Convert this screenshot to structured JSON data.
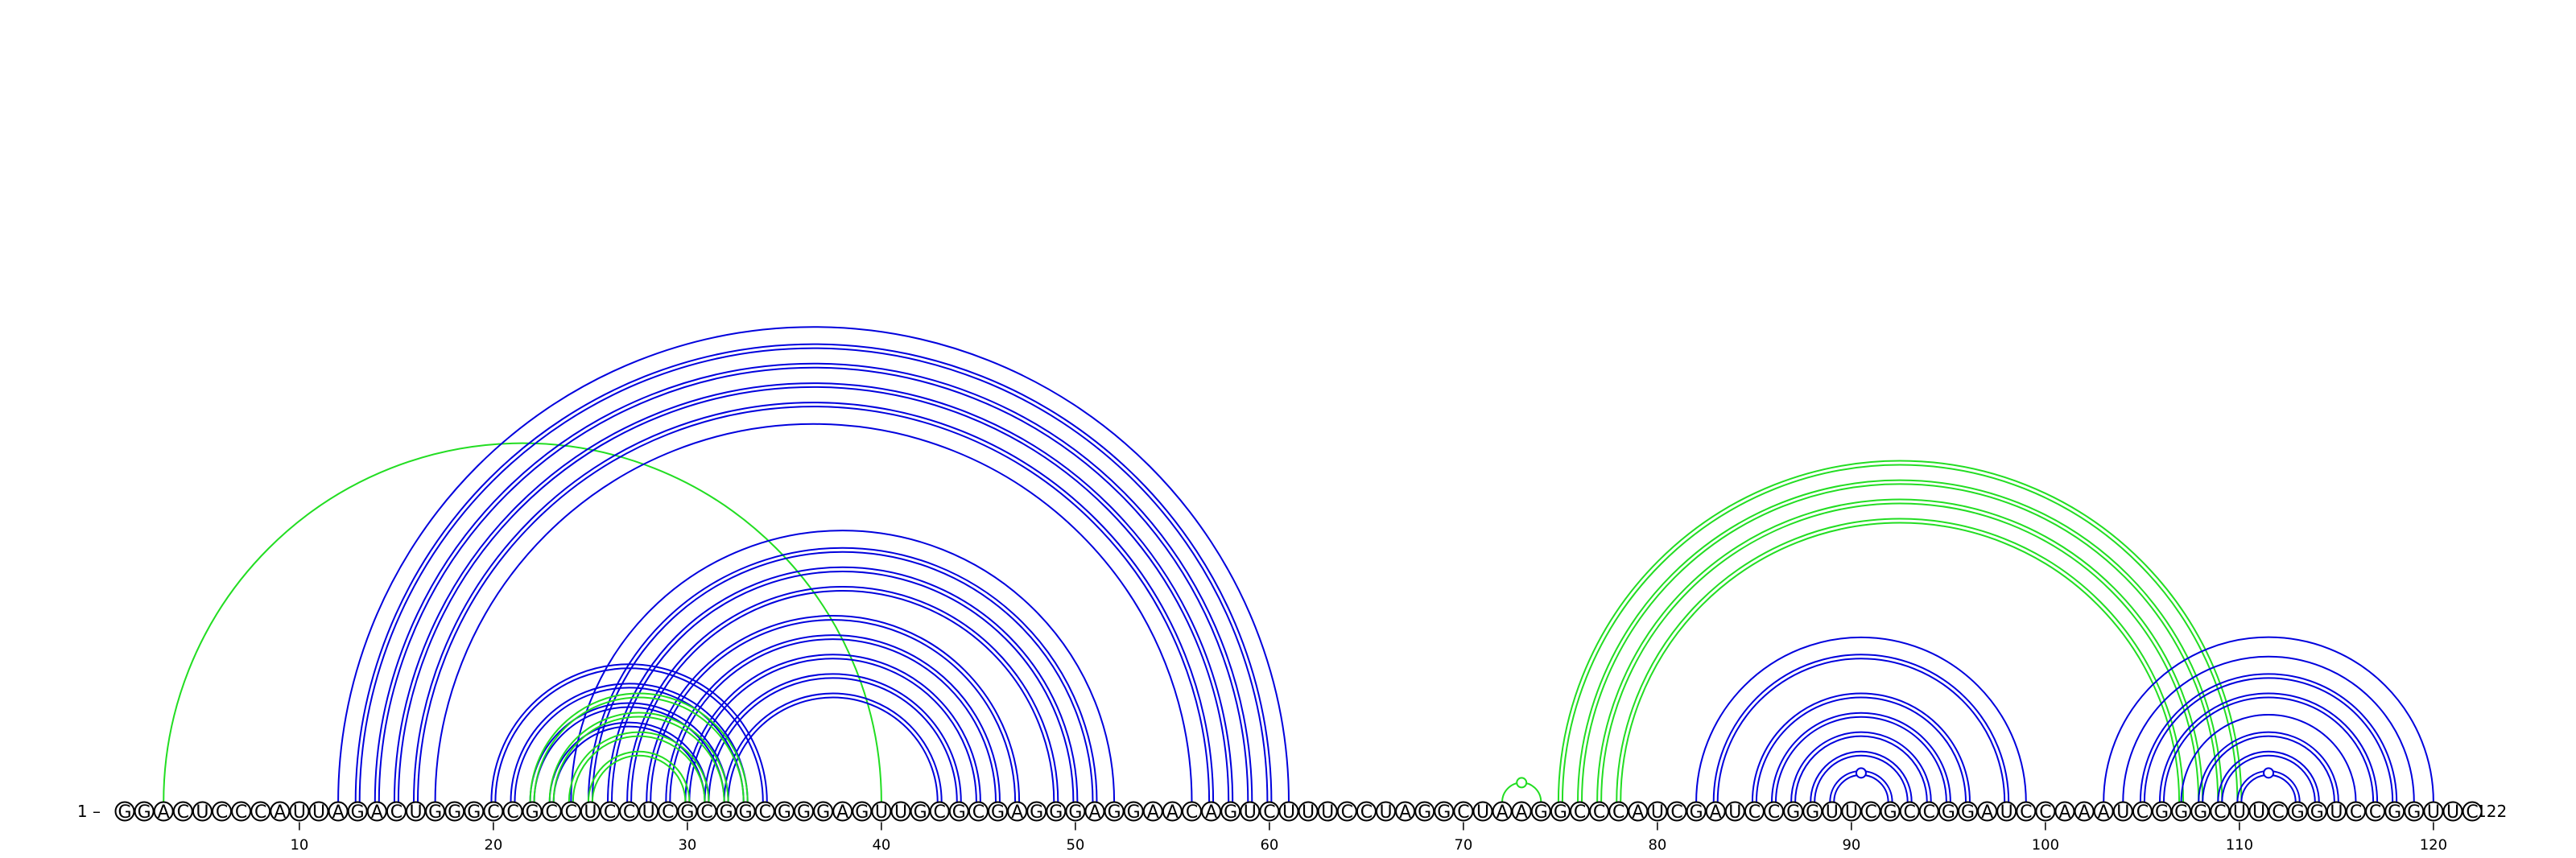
{
  "diagram": {
    "type": "rna-arc-diagram",
    "sequence": "GGACUCCCAUUAGACUGGGCCGCCUCCUCGCGGCGGGAGUUGCGCGAGGGAGGAACAGUCUUUCCUAGGCUAAGGCCCAUCGAUCCGGUUCGCCGGAUCCAAAUCGGGCUUCGGUCCGGUUC",
    "start_label": "1 –",
    "end_label": "–122",
    "ticks": [
      {
        "pos": 10,
        "label": "10"
      },
      {
        "pos": 20,
        "label": "20"
      },
      {
        "pos": 30,
        "label": "30"
      },
      {
        "pos": 40,
        "label": "40"
      },
      {
        "pos": 50,
        "label": "50"
      },
      {
        "pos": 60,
        "label": "60"
      },
      {
        "pos": 70,
        "label": "70"
      },
      {
        "pos": 80,
        "label": "80"
      },
      {
        "pos": 90,
        "label": "90"
      },
      {
        "pos": 100,
        "label": "100"
      },
      {
        "pos": 110,
        "label": "110"
      },
      {
        "pos": 120,
        "label": "120"
      }
    ],
    "colors": {
      "blue": "#0000dd",
      "green": "#22dd22"
    },
    "arcs": [
      {
        "i": 3,
        "j": 40,
        "color": "green",
        "double": false
      },
      {
        "i": 12,
        "j": 61,
        "color": "blue",
        "double": false
      },
      {
        "i": 13,
        "j": 60,
        "color": "blue",
        "double": true
      },
      {
        "i": 14,
        "j": 59,
        "color": "blue",
        "double": true
      },
      {
        "i": 15,
        "j": 58,
        "color": "blue",
        "double": true
      },
      {
        "i": 16,
        "j": 57,
        "color": "blue",
        "double": true
      },
      {
        "i": 17,
        "j": 56,
        "color": "blue",
        "double": false
      },
      {
        "i": 20,
        "j": 34,
        "color": "blue",
        "double": true
      },
      {
        "i": 21,
        "j": 33,
        "color": "blue",
        "double": true
      },
      {
        "i": 22,
        "j": 32,
        "color": "blue",
        "double": true
      },
      {
        "i": 23,
        "j": 31,
        "color": "blue",
        "double": true
      },
      {
        "i": 24,
        "j": 52,
        "color": "blue",
        "double": false
      },
      {
        "i": 25,
        "j": 51,
        "color": "blue",
        "double": true
      },
      {
        "i": 26,
        "j": 50,
        "color": "blue",
        "double": true
      },
      {
        "i": 27,
        "j": 49,
        "color": "blue",
        "double": true
      },
      {
        "i": 28,
        "j": 47,
        "color": "blue",
        "double": true
      },
      {
        "i": 29,
        "j": 46,
        "color": "blue",
        "double": true
      },
      {
        "i": 30,
        "j": 45,
        "color": "blue",
        "double": true
      },
      {
        "i": 31,
        "j": 44,
        "color": "blue",
        "double": true
      },
      {
        "i": 32,
        "j": 43,
        "color": "blue",
        "double": true
      },
      {
        "i": 22,
        "j": 33,
        "color": "green",
        "double": true
      },
      {
        "i": 23,
        "j": 32,
        "color": "green",
        "double": true
      },
      {
        "i": 24,
        "j": 31,
        "color": "green",
        "double": true
      },
      {
        "i": 25,
        "j": 30,
        "color": "green",
        "double": true
      },
      {
        "i": 72,
        "j": 74,
        "color": "green",
        "double": false,
        "loop_marker": true
      },
      {
        "i": 75,
        "j": 110,
        "color": "green",
        "double": true
      },
      {
        "i": 76,
        "j": 109,
        "color": "green",
        "double": true
      },
      {
        "i": 77,
        "j": 108,
        "color": "green",
        "double": true
      },
      {
        "i": 78,
        "j": 107,
        "color": "green",
        "double": true
      },
      {
        "i": 82,
        "j": 99,
        "color": "blue",
        "double": false
      },
      {
        "i": 83,
        "j": 98,
        "color": "blue",
        "double": true
      },
      {
        "i": 85,
        "j": 96,
        "color": "blue",
        "double": true
      },
      {
        "i": 86,
        "j": 95,
        "color": "blue",
        "double": true
      },
      {
        "i": 87,
        "j": 94,
        "color": "blue",
        "double": true
      },
      {
        "i": 88,
        "j": 93,
        "color": "blue",
        "double": true
      },
      {
        "i": 89,
        "j": 92,
        "color": "blue",
        "double": true,
        "loop_marker": true
      },
      {
        "i": 103,
        "j": 120,
        "color": "blue",
        "double": false
      },
      {
        "i": 104,
        "j": 119,
        "color": "blue",
        "double": false
      },
      {
        "i": 105,
        "j": 118,
        "color": "blue",
        "double": true
      },
      {
        "i": 106,
        "j": 117,
        "color": "blue",
        "double": true
      },
      {
        "i": 107,
        "j": 116,
        "color": "blue",
        "double": false
      },
      {
        "i": 108,
        "j": 115,
        "color": "blue",
        "double": true
      },
      {
        "i": 109,
        "j": 114,
        "color": "blue",
        "double": true
      },
      {
        "i": 110,
        "j": 113,
        "color": "blue",
        "double": true,
        "loop_marker": true
      }
    ]
  }
}
